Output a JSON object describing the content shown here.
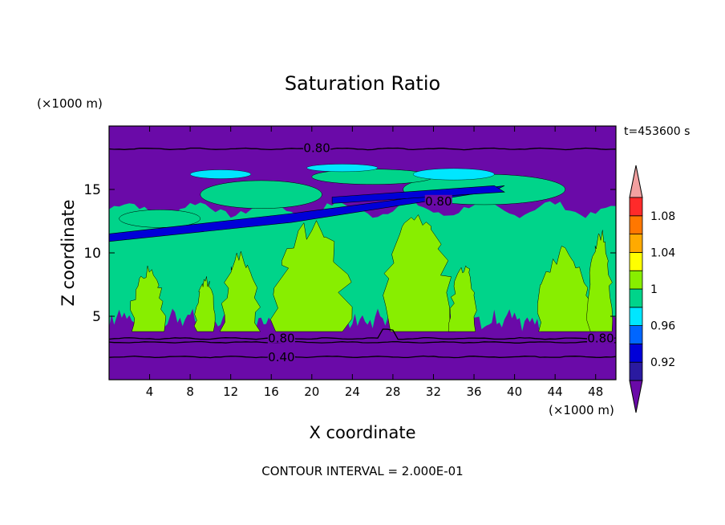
{
  "chart_data": {
    "type": "heatmap",
    "title": "Saturation Ratio",
    "xlabel": "X coordinate",
    "ylabel": "Z coordinate",
    "x_unit": "(×1000 m)",
    "y_unit": "(×1000 m)",
    "time_label": "t=453600 s",
    "contour_interval_label": "CONTOUR INTERVAL = 2.000E-01",
    "xlim": [
      0,
      50
    ],
    "ylim": [
      0,
      20
    ],
    "x_ticks": [
      4,
      8,
      12,
      16,
      20,
      24,
      28,
      32,
      36,
      40,
      44,
      48
    ],
    "y_ticks": [
      5,
      10,
      15
    ],
    "colorbar": {
      "levels": [
        0.92,
        0.94,
        0.96,
        0.98,
        1.0,
        1.02,
        1.04,
        1.06,
        1.08,
        1.1
      ],
      "labels": [
        "0.92",
        "0.96",
        "1",
        "1.04",
        "1.08"
      ],
      "label_values": [
        0.92,
        0.96,
        1.0,
        1.04,
        1.08
      ],
      "colors": [
        "#6a0aa8",
        "#2a1aa0",
        "#0000d8",
        "#0066ff",
        "#00e6ff",
        "#00d48a",
        "#88ee00",
        "#ffff00",
        "#ffaa00",
        "#ff7700",
        "#ff2a2a",
        "#f2a0a0"
      ],
      "extend": "both"
    },
    "contour_labels": [
      {
        "text": "0.80",
        "x": 20.5,
        "z": 18.2
      },
      {
        "text": "0.80",
        "x": 32.5,
        "z": 14.0
      },
      {
        "text": "0.80",
        "x": 17.0,
        "z": 3.2
      },
      {
        "text": "0.80",
        "x": 48.5,
        "z": 3.2
      },
      {
        "text": "0.40",
        "x": 17.0,
        "z": 1.7
      }
    ]
  }
}
